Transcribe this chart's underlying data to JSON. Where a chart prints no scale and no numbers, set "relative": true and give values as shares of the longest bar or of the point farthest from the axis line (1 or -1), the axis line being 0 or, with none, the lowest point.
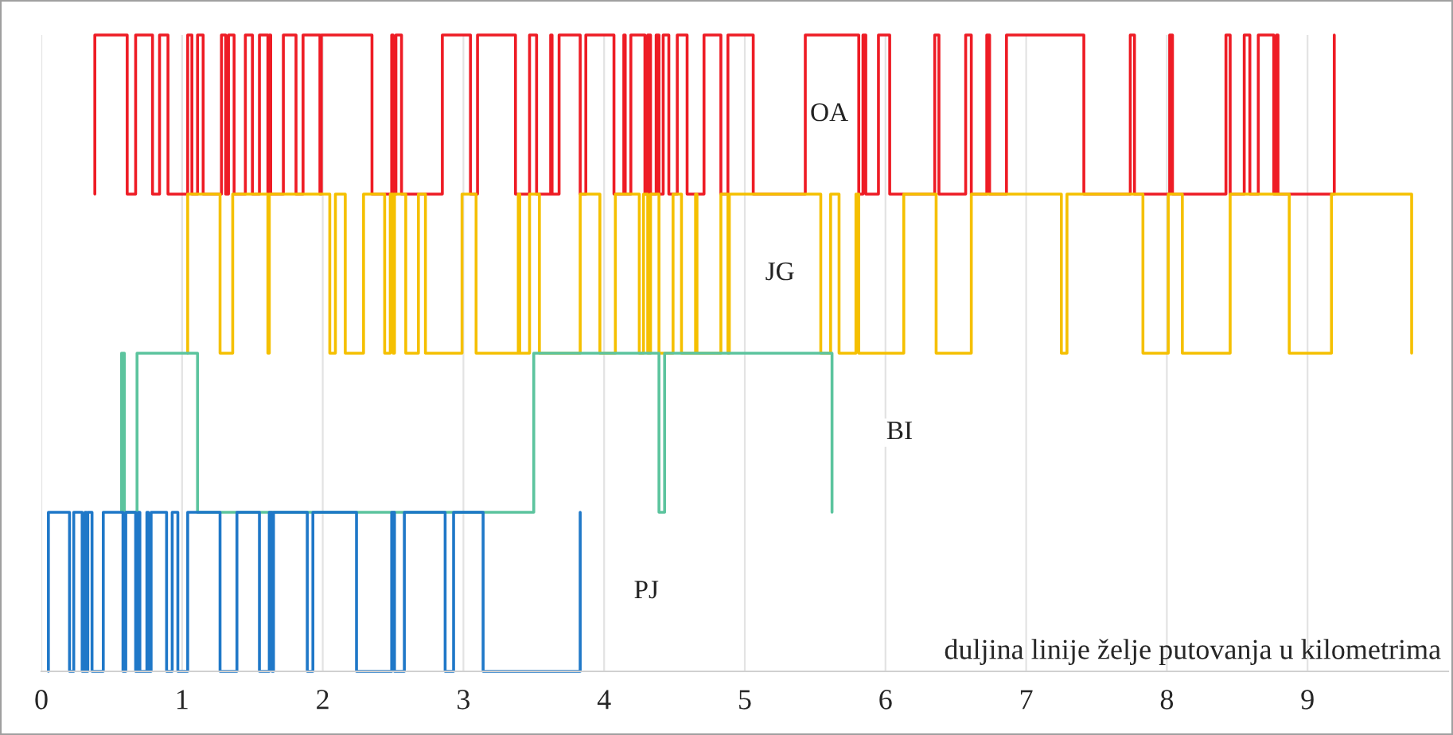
{
  "chart_data": {
    "type": "line",
    "relative": true,
    "xlabel": "duljina linije želje putovanja u kilometrima",
    "xlim": [
      0,
      10
    ],
    "xticks": [
      0,
      1,
      2,
      3,
      4,
      5,
      6,
      7,
      8,
      9
    ],
    "grid": "x",
    "tick_labels": "x",
    "marker": "none",
    "line_style": "solid",
    "series": [
      {
        "name": "OA",
        "color": "#ee1c25",
        "x": [
          0.38,
          0.38,
          0.61,
          0.61,
          0.67,
          0.67,
          0.79,
          0.79,
          0.84,
          0.84,
          0.9,
          0.9,
          1.04,
          1.04,
          1.07,
          1.07,
          1.11,
          1.11,
          1.15,
          1.15,
          1.28,
          1.28,
          1.31,
          1.31,
          1.33,
          1.33,
          1.37,
          1.37,
          1.45,
          1.45,
          1.5,
          1.5,
          1.55,
          1.55,
          1.61,
          1.61,
          1.62,
          1.62,
          1.63,
          1.63,
          1.72,
          1.72,
          1.81,
          1.81,
          1.86,
          1.86,
          1.98,
          1.98,
          1.99,
          1.99,
          2.35,
          2.35,
          2.49,
          2.49,
          2.5,
          2.5,
          2.52,
          2.52,
          2.56,
          2.56,
          2.85,
          2.85,
          3.05,
          3.05,
          3.1,
          3.1,
          3.37,
          3.37,
          3.47,
          3.47,
          3.52,
          3.52,
          3.62,
          3.62,
          3.63,
          3.63,
          3.68,
          3.68,
          3.83,
          3.83,
          3.87,
          3.87,
          4.07,
          4.07,
          4.14,
          4.14,
          4.15,
          4.15,
          4.19,
          4.19,
          4.29,
          4.29,
          4.31,
          4.31,
          4.33,
          4.33,
          4.37,
          4.37,
          4.39,
          4.39,
          4.42,
          4.42,
          4.46,
          4.46,
          4.52,
          4.52,
          4.59,
          4.59,
          4.71,
          4.71,
          4.83,
          4.83,
          4.88,
          4.88,
          5.06,
          5.06,
          5.43,
          5.43,
          5.81,
          5.81,
          5.84,
          5.84,
          5.86,
          5.86,
          5.95,
          5.95,
          6.03,
          6.03,
          6.35,
          6.35,
          6.38,
          6.38,
          6.57,
          6.57,
          6.61,
          6.61,
          6.72,
          6.72,
          6.74,
          6.74,
          6.86,
          6.86,
          7.41,
          7.41,
          7.74,
          7.74,
          7.77,
          7.77,
          8.02,
          8.02,
          8.04,
          8.04,
          8.42,
          8.42,
          8.45,
          8.45,
          8.55,
          8.55,
          8.59,
          8.59,
          8.65,
          8.65,
          8.76,
          8.76,
          8.78,
          8.78,
          8.79,
          8.79,
          9.19,
          9.19
        ],
        "values": [
          0.75,
          1,
          1,
          0.75,
          0.75,
          1,
          1,
          0.75,
          0.75,
          1,
          1,
          0.75,
          0.75,
          1,
          1,
          0.75,
          0.75,
          1,
          1,
          0.75,
          0.75,
          1,
          1,
          0.75,
          0.75,
          1,
          1,
          0.75,
          0.75,
          1,
          1,
          0.75,
          0.75,
          1,
          1,
          0.75,
          0.75,
          1,
          1,
          0.75,
          0.75,
          1,
          1,
          0.75,
          0.75,
          1,
          1,
          0.75,
          0.75,
          1,
          1,
          0.75,
          0.75,
          1,
          1,
          0.75,
          0.75,
          1,
          1,
          0.75,
          0.75,
          1,
          1,
          0.75,
          0.75,
          1,
          1,
          0.75,
          0.75,
          1,
          1,
          0.75,
          0.75,
          1,
          1,
          0.75,
          0.75,
          1,
          1,
          0.75,
          0.75,
          1,
          1,
          0.75,
          0.75,
          1,
          1,
          0.75,
          0.75,
          1,
          1,
          0.75,
          0.75,
          1,
          1,
          0.75,
          0.75,
          1,
          1,
          0.75,
          0.75,
          1,
          1,
          0.75,
          0.75,
          1,
          1,
          0.75,
          0.75,
          1,
          1,
          0.75,
          0.75,
          1,
          1,
          0.75,
          0.75,
          1,
          1,
          0.75,
          0.75,
          1,
          1,
          0.75,
          0.75,
          1,
          1,
          0.75,
          0.75,
          1,
          1,
          0.75,
          0.75,
          1,
          1,
          0.75,
          0.75,
          1,
          1,
          0.75,
          0.75,
          1,
          1,
          0.75,
          0.75,
          1,
          1,
          0.75,
          0.75,
          1,
          1,
          0.75,
          0.75,
          1,
          1,
          0.75,
          0.75,
          1,
          1,
          0.75,
          0.75,
          1,
          1,
          0.75,
          0.75,
          1,
          1,
          0.75,
          0.75,
          1
        ]
      },
      {
        "name": "JG",
        "color": "#f5c000",
        "x": [
          1.04,
          1.04,
          1.27,
          1.27,
          1.36,
          1.36,
          1.61,
          1.61,
          1.62,
          1.62,
          2.05,
          2.05,
          2.09,
          2.09,
          2.16,
          2.16,
          2.29,
          2.29,
          2.44,
          2.44,
          2.48,
          2.48,
          2.5,
          2.5,
          2.51,
          2.51,
          2.59,
          2.59,
          2.68,
          2.68,
          2.73,
          2.73,
          2.99,
          2.99,
          3.09,
          3.09,
          3.39,
          3.39,
          3.4,
          3.4,
          3.47,
          3.47,
          3.54,
          3.54,
          3.83,
          3.83,
          3.97,
          3.97,
          4.08,
          4.08,
          4.25,
          4.25,
          4.28,
          4.28,
          4.31,
          4.31,
          4.33,
          4.33,
          4.39,
          4.39,
          4.49,
          4.49,
          4.55,
          4.55,
          4.65,
          4.65,
          4.66,
          4.66,
          4.83,
          4.83,
          4.88,
          4.88,
          4.89,
          4.89,
          5.54,
          5.54,
          5.61,
          5.61,
          5.67,
          5.67,
          5.79,
          5.79,
          5.81,
          5.81,
          6.13,
          6.13,
          6.36,
          6.36,
          6.61,
          6.61,
          7.25,
          7.25,
          7.29,
          7.29,
          7.83,
          7.83,
          8.01,
          8.01,
          8.11,
          8.11,
          8.45,
          8.45,
          8.87,
          8.87,
          9.17,
          9.17,
          9.74,
          9.74
        ],
        "values": [
          0.5,
          0.75,
          0.75,
          0.5,
          0.5,
          0.75,
          0.75,
          0.5,
          0.5,
          0.75,
          0.75,
          0.5,
          0.5,
          0.75,
          0.75,
          0.5,
          0.5,
          0.75,
          0.75,
          0.5,
          0.5,
          0.75,
          0.75,
          0.5,
          0.5,
          0.75,
          0.75,
          0.5,
          0.5,
          0.75,
          0.75,
          0.5,
          0.5,
          0.75,
          0.75,
          0.5,
          0.5,
          0.75,
          0.75,
          0.5,
          0.5,
          0.75,
          0.75,
          0.5,
          0.5,
          0.75,
          0.75,
          0.5,
          0.5,
          0.75,
          0.75,
          0.5,
          0.5,
          0.75,
          0.75,
          0.5,
          0.5,
          0.75,
          0.75,
          0.5,
          0.5,
          0.75,
          0.75,
          0.5,
          0.5,
          0.75,
          0.75,
          0.5,
          0.5,
          0.75,
          0.75,
          0.5,
          0.5,
          0.75,
          0.75,
          0.5,
          0.5,
          0.75,
          0.75,
          0.5,
          0.5,
          0.75,
          0.75,
          0.5,
          0.5,
          0.75,
          0.75,
          0.5,
          0.5,
          0.75,
          0.75,
          0.5,
          0.5,
          0.75,
          0.75,
          0.5,
          0.5,
          0.75,
          0.75,
          0.5,
          0.5,
          0.75,
          0.75,
          0.5,
          0.5,
          0.75,
          0.75,
          0.5
        ]
      },
      {
        "name": "BI",
        "color": "#5cc49e",
        "x": [
          0.57,
          0.57,
          0.59,
          0.59,
          0.68,
          0.68,
          1.11,
          1.11,
          3.5,
          3.5,
          4.39,
          4.39,
          4.43,
          4.43,
          5.62,
          5.62
        ],
        "values": [
          0.25,
          0.5,
          0.5,
          0.25,
          0.25,
          0.5,
          0.5,
          0.25,
          0.25,
          0.5,
          0.5,
          0.25,
          0.25,
          0.5,
          0.5,
          0.25
        ]
      },
      {
        "name": "PJ",
        "color": "#1f78c8",
        "x": [
          0.05,
          0.05,
          0.2,
          0.2,
          0.23,
          0.23,
          0.29,
          0.29,
          0.31,
          0.31,
          0.32,
          0.32,
          0.33,
          0.33,
          0.36,
          0.36,
          0.44,
          0.44,
          0.58,
          0.58,
          0.6,
          0.6,
          0.67,
          0.67,
          0.69,
          0.69,
          0.7,
          0.7,
          0.75,
          0.75,
          0.76,
          0.76,
          0.78,
          0.78,
          0.89,
          0.89,
          0.93,
          0.93,
          0.97,
          0.97,
          1.04,
          1.04,
          1.27,
          1.27,
          1.39,
          1.39,
          1.55,
          1.55,
          1.62,
          1.62,
          1.64,
          1.64,
          1.65,
          1.65,
          1.89,
          1.89,
          1.93,
          1.93,
          2.24,
          2.24,
          2.49,
          2.49,
          2.51,
          2.51,
          2.58,
          2.58,
          2.87,
          2.87,
          2.93,
          2.93,
          3.14,
          3.14,
          3.83,
          3.83
        ],
        "values": [
          0,
          0.25,
          0.25,
          0,
          0,
          0.25,
          0.25,
          0,
          0,
          0.25,
          0.25,
          0,
          0,
          0.25,
          0.25,
          0,
          0,
          0.25,
          0.25,
          0,
          0,
          0.25,
          0.25,
          0,
          0,
          0.25,
          0.25,
          0,
          0,
          0.25,
          0.25,
          0,
          0,
          0.25,
          0.25,
          0,
          0,
          0.25,
          0.25,
          0,
          0,
          0.25,
          0.25,
          0,
          0,
          0.25,
          0.25,
          0,
          0,
          0.25,
          0.25,
          0,
          0,
          0.25,
          0.25,
          0,
          0,
          0.25,
          0.25,
          0,
          0,
          0.25,
          0.25,
          0,
          0,
          0.25,
          0.25,
          0,
          0,
          0.25,
          0.25,
          0,
          0,
          0.25
        ]
      }
    ]
  }
}
